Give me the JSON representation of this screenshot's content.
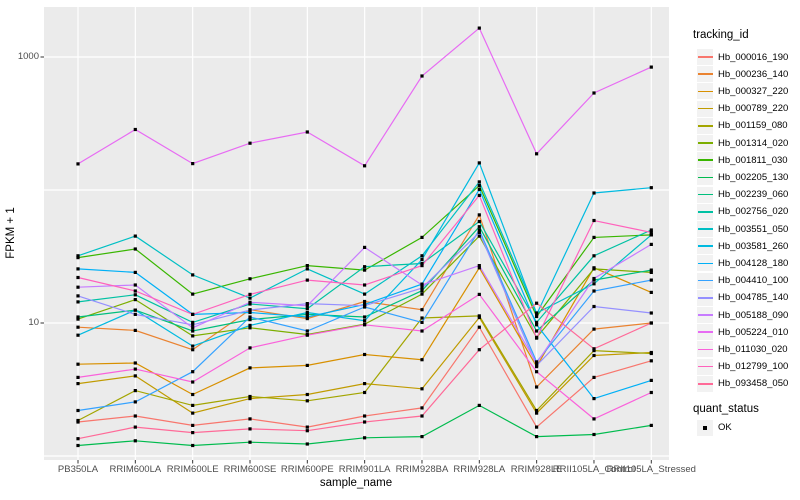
{
  "chart_data": {
    "type": "line",
    "title": "",
    "xlabel": "sample_name",
    "ylabel": "FPKM + 1",
    "y_scale": "log10",
    "ylim": [
      1,
      2300
    ],
    "grid": true,
    "y_ticks": [
      {
        "label": "1000",
        "value": 1000
      },
      {
        "label": "10",
        "value": 10
      }
    ],
    "y_gridline_values": [
      1,
      10,
      100,
      1000
    ],
    "categories": [
      "PB350LA",
      "RRIM600LA",
      "RRIM600LE",
      "RRIM600SE",
      "RRIM600PE",
      "RRIM901LA",
      "RRIM928BA",
      "RRIM928LA",
      "RRIM928LE",
      "RRII105LA_Control",
      "RRII105LA_Stressed"
    ],
    "series": [
      {
        "name": "Hb_000016_190",
        "color": "#F8766D",
        "values": [
          1.8,
          2.0,
          1.7,
          1.9,
          1.65,
          2.0,
          2.3,
          9.3,
          1.65,
          3.9,
          5.2
        ]
      },
      {
        "name": "Hb_000236_140",
        "color": "#EA8331",
        "values": [
          9.3,
          8.8,
          6.3,
          12.6,
          10.8,
          14.5,
          12.6,
          65,
          3.3,
          9.0,
          10.0
        ]
      },
      {
        "name": "Hb_000327_220",
        "color": "#D89000",
        "values": [
          4.9,
          5.0,
          2.9,
          4.6,
          4.8,
          5.8,
          5.3,
          26,
          4.7,
          26,
          17
        ]
      },
      {
        "name": "Hb_000789_220",
        "color": "#C09B00",
        "values": [
          3.5,
          4.0,
          2.1,
          2.7,
          2.9,
          3.5,
          3.2,
          11,
          2.1,
          5.7,
          6.0
        ]
      },
      {
        "name": "Hb_001159_080",
        "color": "#A3A500",
        "values": [
          1.85,
          3.1,
          2.4,
          2.8,
          2.6,
          3.0,
          10.9,
          11.3,
          2.2,
          6.2,
          5.9
        ]
      },
      {
        "name": "Hb_001314_020",
        "color": "#7CAE00",
        "values": [
          10.7,
          15,
          8.0,
          9.2,
          8.2,
          9.8,
          16.5,
          45,
          7.8,
          25.5,
          24
        ]
      },
      {
        "name": "Hb_001811_030",
        "color": "#39B600",
        "values": [
          31,
          36,
          16.5,
          21.5,
          27,
          25,
          44,
          108,
          11.2,
          44,
          46
        ]
      },
      {
        "name": "Hb_002205_130",
        "color": "#00BB4E",
        "values": [
          1.2,
          1.3,
          1.2,
          1.27,
          1.23,
          1.37,
          1.4,
          2.4,
          1.4,
          1.45,
          1.7
        ]
      },
      {
        "name": "Hb_002239_060",
        "color": "#00BF7D",
        "values": [
          11.1,
          12.5,
          8.7,
          10.6,
          11.6,
          11.1,
          17.5,
          53,
          8.7,
          21,
          25
        ]
      },
      {
        "name": "Hb_002756_020",
        "color": "#00C1A3",
        "values": [
          14.4,
          16.3,
          10.1,
          13.9,
          12.8,
          26.5,
          28,
          58,
          10.1,
          32,
          50
        ]
      },
      {
        "name": "Hb_003551_050",
        "color": "#00BFC4",
        "values": [
          32,
          45,
          23,
          15.4,
          25.5,
          16.5,
          32,
          115,
          11.9,
          19.7,
          46
        ]
      },
      {
        "name": "Hb_003581_260",
        "color": "#00BAE0",
        "values": [
          8.1,
          12.5,
          6.7,
          9.6,
          12.0,
          10.4,
          30,
          160,
          11.6,
          95,
          104
        ]
      },
      {
        "name": "Hb_004128_180",
        "color": "#00B0F6",
        "values": [
          25.5,
          24,
          11.6,
          12.0,
          11.1,
          13.8,
          19.6,
          101,
          9.7,
          2.7,
          3.7
        ]
      },
      {
        "name": "Hb_004410_100",
        "color": "#35A2FF",
        "values": [
          2.2,
          2.55,
          4.3,
          11.1,
          8.7,
          13.2,
          10.1,
          50,
          5.1,
          17.4,
          21
        ]
      },
      {
        "name": "Hb_004785_140",
        "color": "#9590FF",
        "values": [
          16,
          11.6,
          9.7,
          12.5,
          14.0,
          13.5,
          18.3,
          48,
          4.8,
          13.3,
          11.9
        ]
      },
      {
        "name": "Hb_005188_090",
        "color": "#C77CFF",
        "values": [
          18.6,
          19.3,
          9.2,
          14.3,
          13.5,
          37,
          19.3,
          27,
          5.0,
          21.6,
          39
        ]
      },
      {
        "name": "Hb_005224_010",
        "color": "#E76BF3",
        "values": [
          157,
          285,
          158,
          225,
          273,
          152,
          720,
          1650,
          187,
          536,
          840
        ]
      },
      {
        "name": "Hb_011030_020",
        "color": "#FA62DB",
        "values": [
          3.9,
          4.5,
          3.6,
          6.5,
          8.1,
          9.7,
          8.7,
          16.4,
          4.3,
          1.9,
          3.0
        ]
      },
      {
        "name": "Hb_012799_100",
        "color": "#FF62BC",
        "values": [
          22,
          17.4,
          11.6,
          16.4,
          21,
          19.3,
          27,
          91,
          7.7,
          59,
          48
        ]
      },
      {
        "name": "Hb_093458_050",
        "color": "#FF6A98",
        "values": [
          1.35,
          1.65,
          1.5,
          1.6,
          1.55,
          1.8,
          2.0,
          6.3,
          14.1,
          6.4,
          10
        ]
      }
    ],
    "legend": {
      "position": "right",
      "series_title": "tracking_id",
      "quant_title": "quant_status",
      "quant_items": [
        {
          "label": "OK",
          "marker": "black-square"
        }
      ]
    },
    "style": {
      "panel_bg": "#EBEBEB",
      "grid_color": "#FFFFFF",
      "point_color": "#000000",
      "tick_color": "#333333",
      "axis_text_color": "#4D4D4D",
      "legend_key_bg": "#F2F2F2"
    }
  }
}
